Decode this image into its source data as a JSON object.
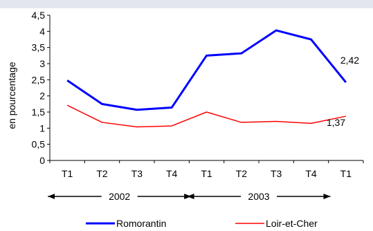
{
  "chart_data": {
    "type": "line",
    "ylabel": "en pourcentage",
    "ylim": [
      0,
      4.5
    ],
    "yticks": [
      0,
      0.5,
      1,
      1.5,
      2,
      2.5,
      3,
      3.5,
      4,
      4.5
    ],
    "ytick_labels": [
      "0",
      "0,5",
      "1",
      "1,5",
      "2",
      "2,5",
      "3",
      "3,5",
      "4",
      "4,5"
    ],
    "categories": [
      "T1",
      "T2",
      "T3",
      "T4",
      "T1",
      "T2",
      "T3",
      "T4",
      "T1"
    ],
    "year_groups": [
      {
        "label": "2002",
        "start": 0,
        "end": 3
      },
      {
        "label": "2003",
        "start": 4,
        "end": 7
      }
    ],
    "grid": false,
    "legend_position": "bottom",
    "series": [
      {
        "name": "Romorantin",
        "color": "#0000ff",
        "values": [
          2.48,
          1.75,
          1.57,
          1.64,
          3.25,
          3.32,
          4.03,
          3.75,
          2.42
        ]
      },
      {
        "name": "Loir-et-Cher",
        "color": "#ff0000",
        "values": [
          1.71,
          1.18,
          1.04,
          1.07,
          1.5,
          1.18,
          1.21,
          1.15,
          1.37
        ]
      }
    ],
    "annotations": [
      {
        "series": 0,
        "index": 8,
        "text": "2,42"
      },
      {
        "series": 1,
        "index": 8,
        "text": "1,37"
      }
    ]
  }
}
